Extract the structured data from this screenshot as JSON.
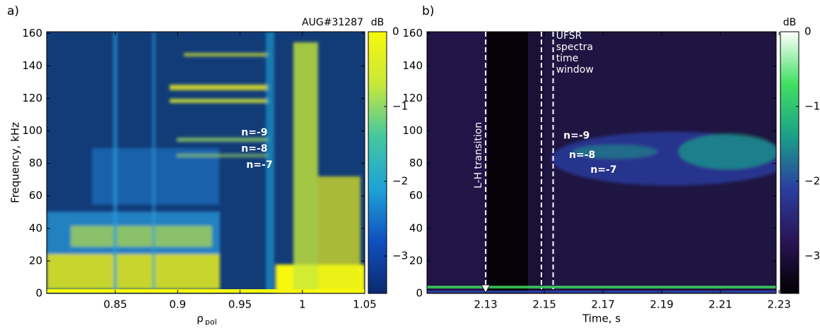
{
  "chart_data": [
    {
      "type": "heatmap",
      "panel_label": "a)",
      "tag": "AUG#31287",
      "x_label": "ρ",
      "x_label_sub": "pol",
      "y_label": "Frequency, kHz",
      "xlim": [
        0.795,
        1.05
      ],
      "xticks": [
        0.85,
        0.9,
        0.95,
        1,
        1.05
      ],
      "ylim": [
        0,
        161
      ],
      "yticks": [
        0,
        20,
        40,
        60,
        80,
        100,
        120,
        140,
        160
      ],
      "colorbar": {
        "label": "dB",
        "zlim": [
          -3.5,
          0
        ],
        "zticks": [
          {
            "value": -3,
            "label": "−3"
          },
          {
            "value": -2,
            "label": "−2"
          },
          {
            "value": -1,
            "label": "−1"
          },
          0
        ],
        "colors": [
          "#0b2a6f",
          "#1050c0",
          "#1ea3d6",
          "#44c8a0",
          "#c8e83a",
          "#f8f80a"
        ]
      },
      "annotations": [
        {
          "text": "n=-9",
          "x": 0.951,
          "y": 99
        },
        {
          "text": "n=-8",
          "x": 0.951,
          "y": 89
        },
        {
          "text": "n=-7",
          "x": 0.955,
          "y": 79
        }
      ]
    },
    {
      "type": "heatmap",
      "panel_label": "b)",
      "x_label": "Time, s",
      "xlim": [
        2.11,
        2.229
      ],
      "xticks": [
        2.13,
        2.15,
        2.17,
        2.19,
        2.21,
        2.23
      ],
      "ylim": [
        0,
        161
      ],
      "yticks": [
        0,
        20,
        40,
        60,
        80,
        100,
        120,
        140,
        160
      ],
      "colorbar": {
        "label": "dB",
        "zlim": [
          -3.5,
          0
        ],
        "zticks": [
          {
            "value": -3,
            "label": "−3"
          },
          {
            "value": -2,
            "label": "−2"
          },
          {
            "value": -1,
            "label": "−1"
          },
          0
        ],
        "colors": [
          "#000000",
          "#2a1456",
          "#2b3ea0",
          "#1aa08a",
          "#40e060",
          "#ffffff"
        ]
      },
      "vlines": [
        {
          "x": 2.13,
          "label": "L-H transition"
        },
        {
          "x": 2.149
        },
        {
          "x": 2.153
        }
      ],
      "window_label": {
        "lines": [
          "UFSR",
          "spectra",
          "time",
          "window"
        ],
        "x": 2.1535,
        "y": 155
      },
      "annotations": [
        {
          "text": "n=-9",
          "x": 2.1565,
          "y": 97
        },
        {
          "text": "n=-8",
          "x": 2.1584,
          "y": 85
        },
        {
          "text": "n=-7",
          "x": 2.1657,
          "y": 76
        }
      ]
    }
  ]
}
